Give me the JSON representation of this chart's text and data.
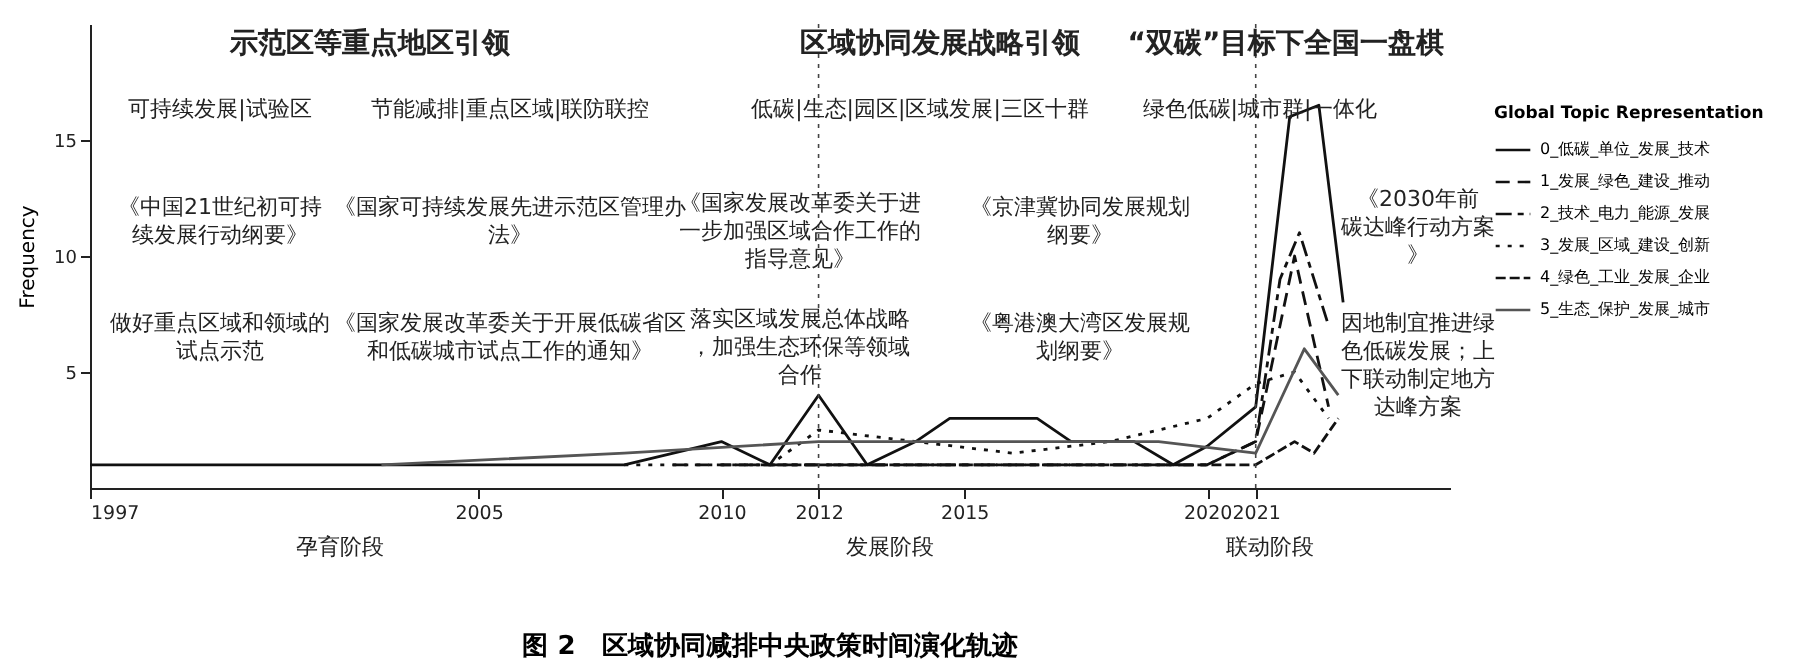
{
  "chart_data": {
    "type": "line",
    "title": "图 2　区域协同减排中央政策时间演化轨迹",
    "ylabel": "Frequency",
    "legend_title": "Global Topic Representation",
    "legend": "right",
    "grid": false,
    "marker": "none",
    "xlim": [
      1997,
      2025
    ],
    "xticks": [
      1997,
      2005,
      2010,
      2012,
      2015,
      2020,
      2021
    ],
    "ylim": [
      0,
      20
    ],
    "yticks": [
      5,
      10,
      15
    ],
    "ref_lines": [
      {
        "axis": "x",
        "value": 2012,
        "line_style": "dotted"
      },
      {
        "axis": "x",
        "value": 2021,
        "line_style": "dotted"
      }
    ],
    "series": [
      {
        "name": "0_低碳_单位_发展_技术",
        "color": "#111111",
        "line_style": "solid",
        "x": [
          1997,
          2008,
          2010,
          2011,
          2012,
          2013,
          2014,
          2014.7,
          2016.5,
          2017.2,
          2018.5,
          2019.3,
          2020,
          2021,
          2021.7,
          2022.3,
          2022.8
        ],
        "values": [
          1,
          1,
          2,
          1,
          4,
          1,
          2,
          3,
          3,
          2,
          2,
          1,
          1.8,
          3.5,
          16,
          16.5,
          8
        ]
      },
      {
        "name": "1_发展_绿色_建设_推动",
        "color": "#111111",
        "line_style": "dashed",
        "x": [
          2009,
          2012,
          2015,
          2018,
          2020,
          2021,
          2021.8,
          2022.5
        ],
        "values": [
          1,
          1,
          1,
          1,
          1,
          2,
          10,
          3.5
        ]
      },
      {
        "name": "2_技术_电力_能源_发展",
        "color": "#111111",
        "line_style": "dashed",
        "x": [
          2011,
          2013,
          2016,
          2019,
          2020,
          2021,
          2021.5,
          2021.9,
          2022.5
        ],
        "values": [
          1,
          1,
          1,
          1,
          1,
          2,
          9,
          11,
          7
        ]
      },
      {
        "name": "3_发展_区域_建设_创新",
        "color": "#111111",
        "line_style": "dotted",
        "x": [
          2008,
          2011,
          2012,
          2014,
          2016,
          2018,
          2020,
          2021,
          2021.8,
          2022.5
        ],
        "values": [
          1,
          1,
          2.5,
          2,
          1.5,
          2,
          3,
          4.5,
          5,
          3
        ]
      },
      {
        "name": "4_绿色_工业_发展_企业",
        "color": "#111111",
        "line_style": "dashed",
        "x": [
          2010,
          2013,
          2016,
          2019,
          2021,
          2021.8,
          2022.2,
          2022.7
        ],
        "values": [
          1,
          1,
          1,
          1,
          1,
          2,
          1.5,
          3
        ]
      },
      {
        "name": "5_生态_保护_发展_城市",
        "color": "#555555",
        "line_style": "solid",
        "x": [
          2003,
          2008,
          2012,
          2016,
          2019,
          2021,
          2022,
          2022.7
        ],
        "values": [
          1,
          1.5,
          2,
          2,
          2,
          1.5,
          6,
          4
        ]
      }
    ],
    "annotations": [
      "示范区等重点地区引领",
      "区域协同发展战略引领",
      "“双碳”目标下全国一盘棋",
      "可持续发展|试验区",
      "节能减排|重点区域|联防联控",
      "低碳|生态|园区|区域发展|三区十群",
      "绿色低碳|城市群|一体化",
      "《中国21世纪初可持续发展行动纲要》",
      "《国家可持续发展先进示范区管理办法》",
      "《国家发展改革委关于进一步加强区域合作工作的指导意见》",
      "《京津冀协同发展规划纲要》",
      "《2030年前碳达峰行动方案》",
      "做好重点区域和领域的试点示范",
      "《国家发展改革委关于开展低碳省区和低碳城市试点工作的通知》",
      "落实区域发展总体战略，加强生态环保等领域合作",
      "《粤港澳大湾区发展规划纲要》",
      "因地制宜推进绿色低碳发展；上下联动制定地方达峰方案",
      "孕育阶段",
      "发展阶段",
      "联动阶段"
    ]
  }
}
